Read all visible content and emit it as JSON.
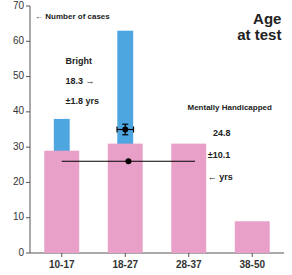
{
  "chart_data": {
    "type": "bar",
    "title": "Age\nat test",
    "ylabel": "← Number of cases",
    "categories": [
      "10-17",
      "18-27",
      "28-37",
      "38-50"
    ],
    "series": [
      {
        "color": "#4da6e0",
        "values": [
          38,
          63,
          0,
          0
        ]
      },
      {
        "color": "#e8a0c8",
        "values": [
          29,
          31,
          31,
          9
        ]
      }
    ],
    "ylim": [
      0,
      70
    ],
    "yticks": [
      0,
      10,
      20,
      30,
      40,
      50,
      60,
      70
    ],
    "annotations": [
      "Bright",
      "18.3 →",
      "±1.8 yrs",
      "Mentally Handicapped",
      "24.8",
      "±10.1",
      "← yrs"
    ],
    "error_bars": [
      {
        "x": 1.0,
        "y": 35,
        "xerr": 0.13,
        "yerr": 1.5
      },
      {
        "x": 1.05,
        "y": 26,
        "xerr": 1.05,
        "yerr": 0
      }
    ]
  }
}
